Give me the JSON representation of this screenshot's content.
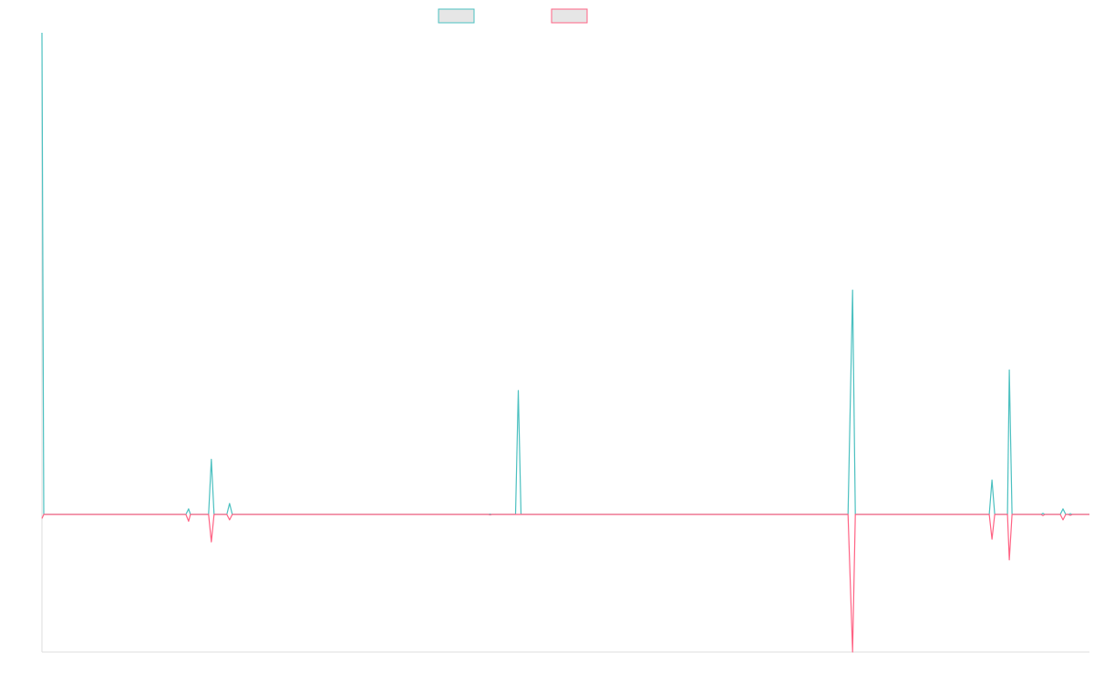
{
  "chart_data": {
    "type": "line",
    "title": "",
    "xlabel": "",
    "ylabel": "",
    "ylim": [
      -1.0,
      3.5
    ],
    "grid": false,
    "legend": {
      "position": "top",
      "entries": [
        {
          "label": "",
          "color": "#4bc0c0"
        },
        {
          "label": "",
          "color": "#ff6384"
        }
      ]
    },
    "x_range": [
      0,
      1150
    ],
    "series": [
      {
        "color": "#4bc0c0",
        "points": [
          [
            0,
            3.5
          ],
          [
            2,
            0
          ],
          [
            158,
            0
          ],
          [
            161,
            0.04
          ],
          [
            163,
            0
          ],
          [
            183,
            0
          ],
          [
            186,
            0.4
          ],
          [
            189,
            0
          ],
          [
            203,
            0
          ],
          [
            206,
            0.08
          ],
          [
            209,
            0
          ],
          [
            490,
            0
          ],
          [
            492,
            0.003
          ],
          [
            494,
            0
          ],
          [
            520,
            0
          ],
          [
            523,
            0.9
          ],
          [
            526,
            0
          ],
          [
            885,
            0
          ],
          [
            890,
            1.63
          ],
          [
            893,
            0
          ],
          [
            1040,
            0
          ],
          [
            1043,
            0.25
          ],
          [
            1046,
            0
          ],
          [
            1060,
            0
          ],
          [
            1062,
            1.05
          ],
          [
            1065,
            0
          ],
          [
            1097,
            0
          ],
          [
            1099,
            0.008
          ],
          [
            1101,
            0
          ],
          [
            1118,
            0
          ],
          [
            1121,
            0.04
          ],
          [
            1124,
            0
          ],
          [
            1127,
            0
          ],
          [
            1129,
            0.006
          ],
          [
            1131,
            0
          ],
          [
            1150,
            0
          ]
        ]
      },
      {
        "color": "#ff6384",
        "points": [
          [
            0,
            -0.03
          ],
          [
            2,
            0
          ],
          [
            158,
            0
          ],
          [
            161,
            -0.05
          ],
          [
            163,
            0
          ],
          [
            183,
            0
          ],
          [
            186,
            -0.2
          ],
          [
            189,
            0
          ],
          [
            203,
            0
          ],
          [
            206,
            -0.04
          ],
          [
            209,
            0
          ],
          [
            490,
            0
          ],
          [
            492,
            -0.003
          ],
          [
            494,
            0
          ],
          [
            885,
            0
          ],
          [
            890,
            -1.0
          ],
          [
            893,
            0
          ],
          [
            1040,
            0
          ],
          [
            1043,
            -0.18
          ],
          [
            1046,
            0
          ],
          [
            1060,
            0
          ],
          [
            1062,
            -0.33
          ],
          [
            1065,
            0
          ],
          [
            1097,
            0
          ],
          [
            1099,
            -0.008
          ],
          [
            1101,
            0
          ],
          [
            1118,
            0
          ],
          [
            1121,
            -0.04
          ],
          [
            1124,
            0
          ],
          [
            1127,
            0
          ],
          [
            1129,
            -0.006
          ],
          [
            1131,
            0
          ],
          [
            1150,
            0
          ]
        ]
      }
    ]
  }
}
